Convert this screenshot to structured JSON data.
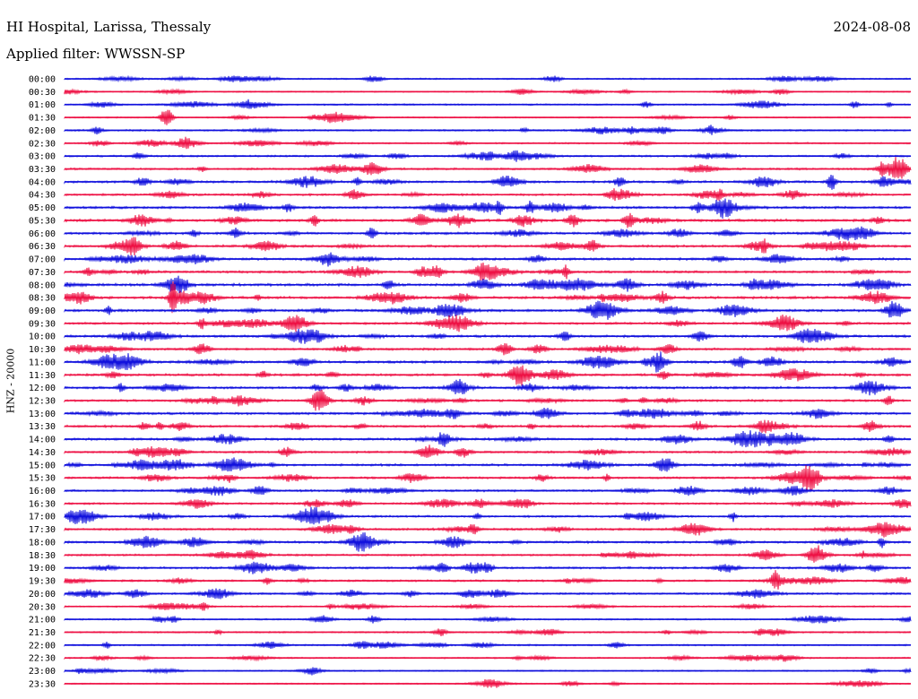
{
  "header": {
    "station": "HI Hospital, Larissa, Thessaly",
    "date": "2024-08-08",
    "filter": "Applied filter: WWSSN-SP"
  },
  "channel_label": "HNZ - 20000",
  "colors": {
    "trace_a": "#1010dd",
    "trace_b": "#ee1144",
    "text": "#000000",
    "background": "#ffffff"
  },
  "chart_data": {
    "type": "line",
    "description_kind": "helicorder",
    "row_labels": [
      "00:00",
      "00:30",
      "01:00",
      "01:30",
      "02:00",
      "02:30",
      "03:00",
      "03:30",
      "04:00",
      "04:30",
      "05:00",
      "05:30",
      "06:00",
      "06:30",
      "07:00",
      "07:30",
      "08:00",
      "08:30",
      "09:00",
      "09:30",
      "10:00",
      "10:30",
      "11:00",
      "11:30",
      "12:00",
      "12:30",
      "13:00",
      "13:30",
      "14:00",
      "14:30",
      "15:00",
      "15:30",
      "16:00",
      "16:30",
      "17:00",
      "17:30",
      "18:00",
      "18:30",
      "19:00",
      "19:30",
      "20:00",
      "20:30",
      "21:00",
      "21:30",
      "22:00",
      "22:30",
      "23:00",
      "23:30"
    ],
    "row_activity": [
      0.25,
      0.2,
      0.3,
      0.2,
      0.35,
      0.3,
      0.4,
      0.45,
      0.6,
      0.5,
      0.6,
      0.7,
      0.6,
      0.6,
      0.6,
      0.6,
      0.7,
      0.65,
      0.65,
      0.55,
      0.6,
      0.55,
      0.65,
      0.6,
      0.6,
      0.55,
      0.6,
      0.55,
      0.6,
      0.5,
      0.55,
      0.5,
      0.5,
      0.45,
      0.5,
      0.5,
      0.55,
      0.45,
      0.5,
      0.45,
      0.45,
      0.3,
      0.3,
      0.3,
      0.3,
      0.25,
      0.2,
      0.2
    ],
    "minutes_per_row": 30,
    "grid": false
  }
}
